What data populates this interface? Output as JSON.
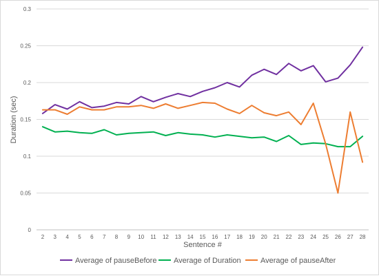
{
  "chart_data": {
    "type": "line",
    "xlabel": "Sentence #",
    "ylabel": "Duration (sec)",
    "x": [
      2,
      3,
      4,
      5,
      6,
      7,
      8,
      9,
      10,
      11,
      12,
      13,
      14,
      15,
      16,
      17,
      18,
      19,
      20,
      21,
      22,
      23,
      24,
      25,
      26,
      27,
      28
    ],
    "ylim": [
      0,
      0.3
    ],
    "y_ticks": [
      "0",
      "0.05",
      "0.1",
      "0.15",
      "0.2",
      "0.25",
      "0.3"
    ],
    "y_tick_values": [
      0,
      0.05,
      0.1,
      0.15,
      0.2,
      0.25,
      0.3
    ],
    "grid": true,
    "legend_position": "bottom",
    "series": [
      {
        "name": "Average of pauseBefore",
        "color": "#7030a0",
        "values": [
          0.158,
          0.17,
          0.164,
          0.174,
          0.166,
          0.168,
          0.173,
          0.171,
          0.181,
          0.174,
          0.18,
          0.185,
          0.181,
          0.188,
          0.193,
          0.2,
          0.194,
          0.21,
          0.218,
          0.211,
          0.226,
          0.216,
          0.223,
          0.201,
          0.206,
          0.224,
          0.248
        ]
      },
      {
        "name": "Average of Duration",
        "color": "#00b050",
        "values": [
          0.14,
          0.133,
          0.134,
          0.132,
          0.131,
          0.136,
          0.129,
          0.131,
          0.132,
          0.133,
          0.128,
          0.132,
          0.13,
          0.129,
          0.126,
          0.129,
          0.127,
          0.125,
          0.126,
          0.12,
          0.128,
          0.116,
          0.118,
          0.117,
          0.113,
          0.113,
          0.127
        ]
      },
      {
        "name": "Average of pauseAfter",
        "color": "#ed7d31",
        "values": [
          0.163,
          0.163,
          0.157,
          0.167,
          0.163,
          0.163,
          0.167,
          0.167,
          0.169,
          0.165,
          0.171,
          0.165,
          0.169,
          0.173,
          0.172,
          0.164,
          0.158,
          0.169,
          0.159,
          0.155,
          0.16,
          0.143,
          0.172,
          0.117,
          0.05,
          0.16,
          0.092
        ]
      }
    ]
  }
}
